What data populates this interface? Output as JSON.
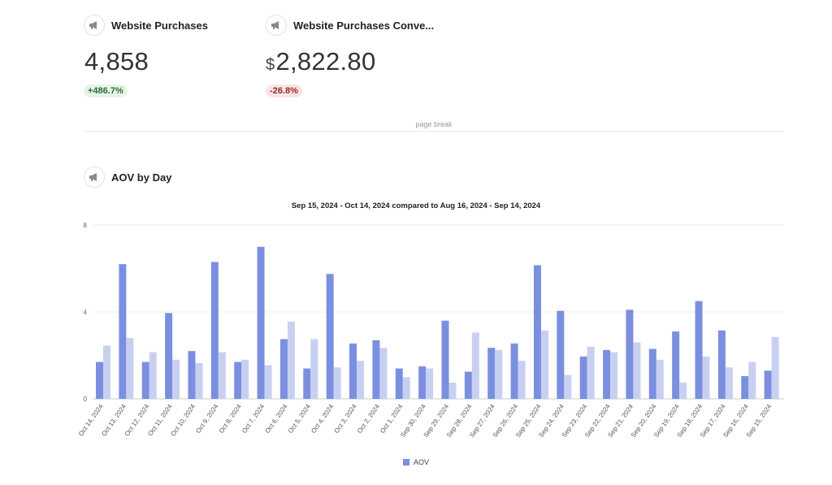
{
  "metrics": [
    {
      "title": "Website Purchases",
      "currency": "",
      "value": "4,858",
      "delta": "+486.7%",
      "delta_type": "positive"
    },
    {
      "title": "Website Purchases Conve...",
      "currency": "$",
      "value": "2,822.80",
      "delta": "-26.8%",
      "delta_type": "negative"
    }
  ],
  "page_break_label": "page break",
  "section_title": "AOV by Day",
  "chart_data": {
    "type": "bar",
    "subtitle": "Sep 15, 2024 - Oct 14, 2024 compared to Aug 16, 2024 - Sep 14, 2024",
    "categories": [
      "Oct 14, 2024",
      "Oct 13, 2024",
      "Oct 12, 2024",
      "Oct 11, 2024",
      "Oct 10, 2024",
      "Oct 9, 2024",
      "Oct 8, 2024",
      "Oct 7, 2024",
      "Oct 6, 2024",
      "Oct 5, 2024",
      "Oct 4, 2024",
      "Oct 3, 2024",
      "Oct 2, 2024",
      "Oct 1, 2024",
      "Sep 30, 2024",
      "Sep 29, 2024",
      "Sep 28, 2024",
      "Sep 27, 2024",
      "Sep 26, 2024",
      "Sep 25, 2024",
      "Sep 24, 2024",
      "Sep 23, 2024",
      "Sep 22, 2024",
      "Sep 21, 2024",
      "Sep 20, 2024",
      "Sep 19, 2024",
      "Sep 18, 2024",
      "Sep 17, 2024",
      "Sep 16, 2024",
      "Sep 15, 2024"
    ],
    "series": [
      {
        "name": "AOV",
        "color": "#7b8fe0",
        "values": [
          1.7,
          6.2,
          1.7,
          3.95,
          2.2,
          6.3,
          1.7,
          7.0,
          2.75,
          1.4,
          5.75,
          2.55,
          2.7,
          1.4,
          1.5,
          3.6,
          1.25,
          2.35,
          2.55,
          6.15,
          4.05,
          1.95,
          2.25,
          4.1,
          2.3,
          3.1,
          4.5,
          3.15,
          1.05,
          1.3
        ]
      },
      {
        "color": "#c8d0f2",
        "values": [
          2.45,
          2.8,
          2.15,
          1.8,
          1.65,
          2.15,
          1.8,
          1.55,
          3.55,
          2.75,
          1.45,
          1.75,
          2.35,
          1.0,
          1.4,
          0.75,
          3.05,
          2.25,
          1.75,
          3.15,
          1.1,
          2.4,
          2.15,
          2.6,
          1.8,
          0.75,
          1.95,
          1.45,
          1.7,
          2.85
        ]
      }
    ],
    "yticks": [
      0,
      4,
      8
    ],
    "ylim": [
      0,
      8
    ],
    "grid": true,
    "legend": "bottom",
    "legend_entries": [
      "AOV"
    ]
  }
}
